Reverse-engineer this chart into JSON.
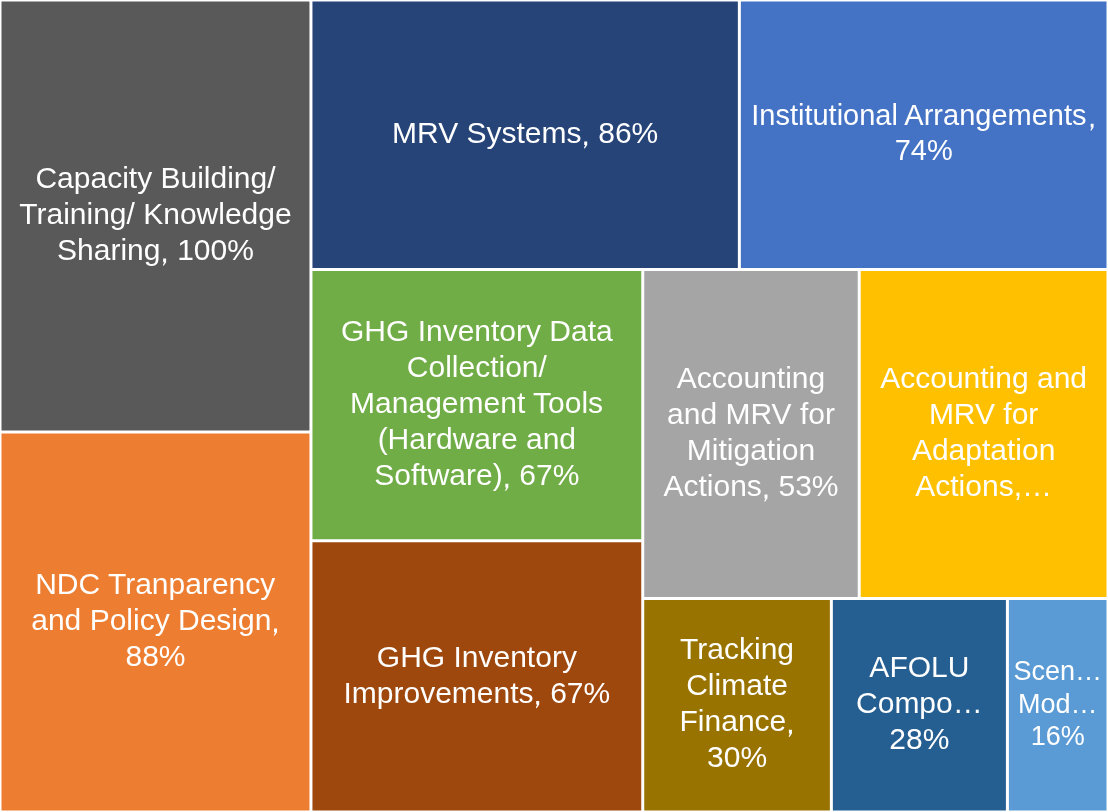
{
  "chart_data": {
    "type": "other",
    "categories": [
      "Capacity Building/ Training/ Knowledge Sharing",
      "NDC Tranparency and Policy Design",
      "MRV Systems",
      "Institutional Arrangements",
      "GHG Inventory Data Collection/ Management Tools (Hardware and Software)",
      "GHG Inventory Improvements",
      "Accounting and MRV for Mitigation Actions",
      "Accounting and MRV for Adaptation Actions,…",
      "Tracking Climate Finance",
      "AFOLU Compo…",
      "Scen… Mod…"
    ],
    "values": [
      100,
      88,
      86,
      74,
      67,
      67,
      53,
      null,
      30,
      28,
      16
    ],
    "value_labels": [
      "100%",
      "88%",
      "86%",
      "74%",
      "67%",
      "67%",
      "53%",
      null,
      "30%",
      "28%",
      "16%"
    ],
    "colors": [
      "#595959",
      "#ed7d31",
      "#264478",
      "#4472c4",
      "#70ad47",
      "#9e480e",
      "#a5a5a5",
      "#ffc000",
      "#997300",
      "#255e91",
      "#5b9bd5"
    ]
  }
}
